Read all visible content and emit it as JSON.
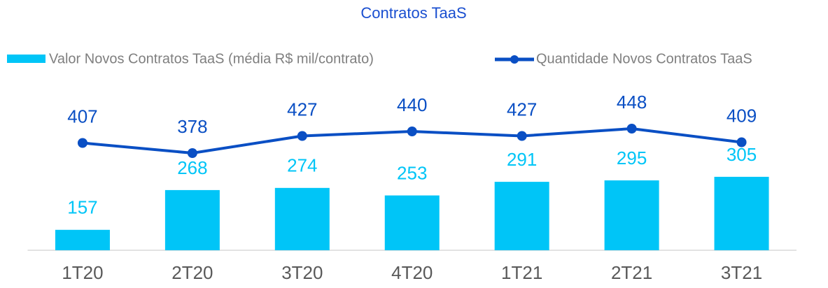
{
  "chart_data": {
    "type": "bar_line",
    "title": "Contratos TaaS",
    "categories": [
      "1T20",
      "2T20",
      "3T20",
      "4T20",
      "1T21",
      "2T21",
      "3T21"
    ],
    "series": [
      {
        "name": "Valor Novos Contratos TaaS (média R$ mil/contrato)",
        "type": "bar",
        "color": "#00c5f7",
        "values": [
          157,
          268,
          274,
          253,
          291,
          295,
          305
        ]
      },
      {
        "name": "Quantidade Novos Contratos TaaS",
        "type": "line",
        "axis": "y2",
        "color": "#0a4fc4",
        "values": [
          407,
          378,
          427,
          440,
          427,
          448,
          409
        ]
      }
    ],
    "ylim": [
      100,
      500
    ],
    "y2lim": [
      100,
      510
    ],
    "legend": "top"
  }
}
